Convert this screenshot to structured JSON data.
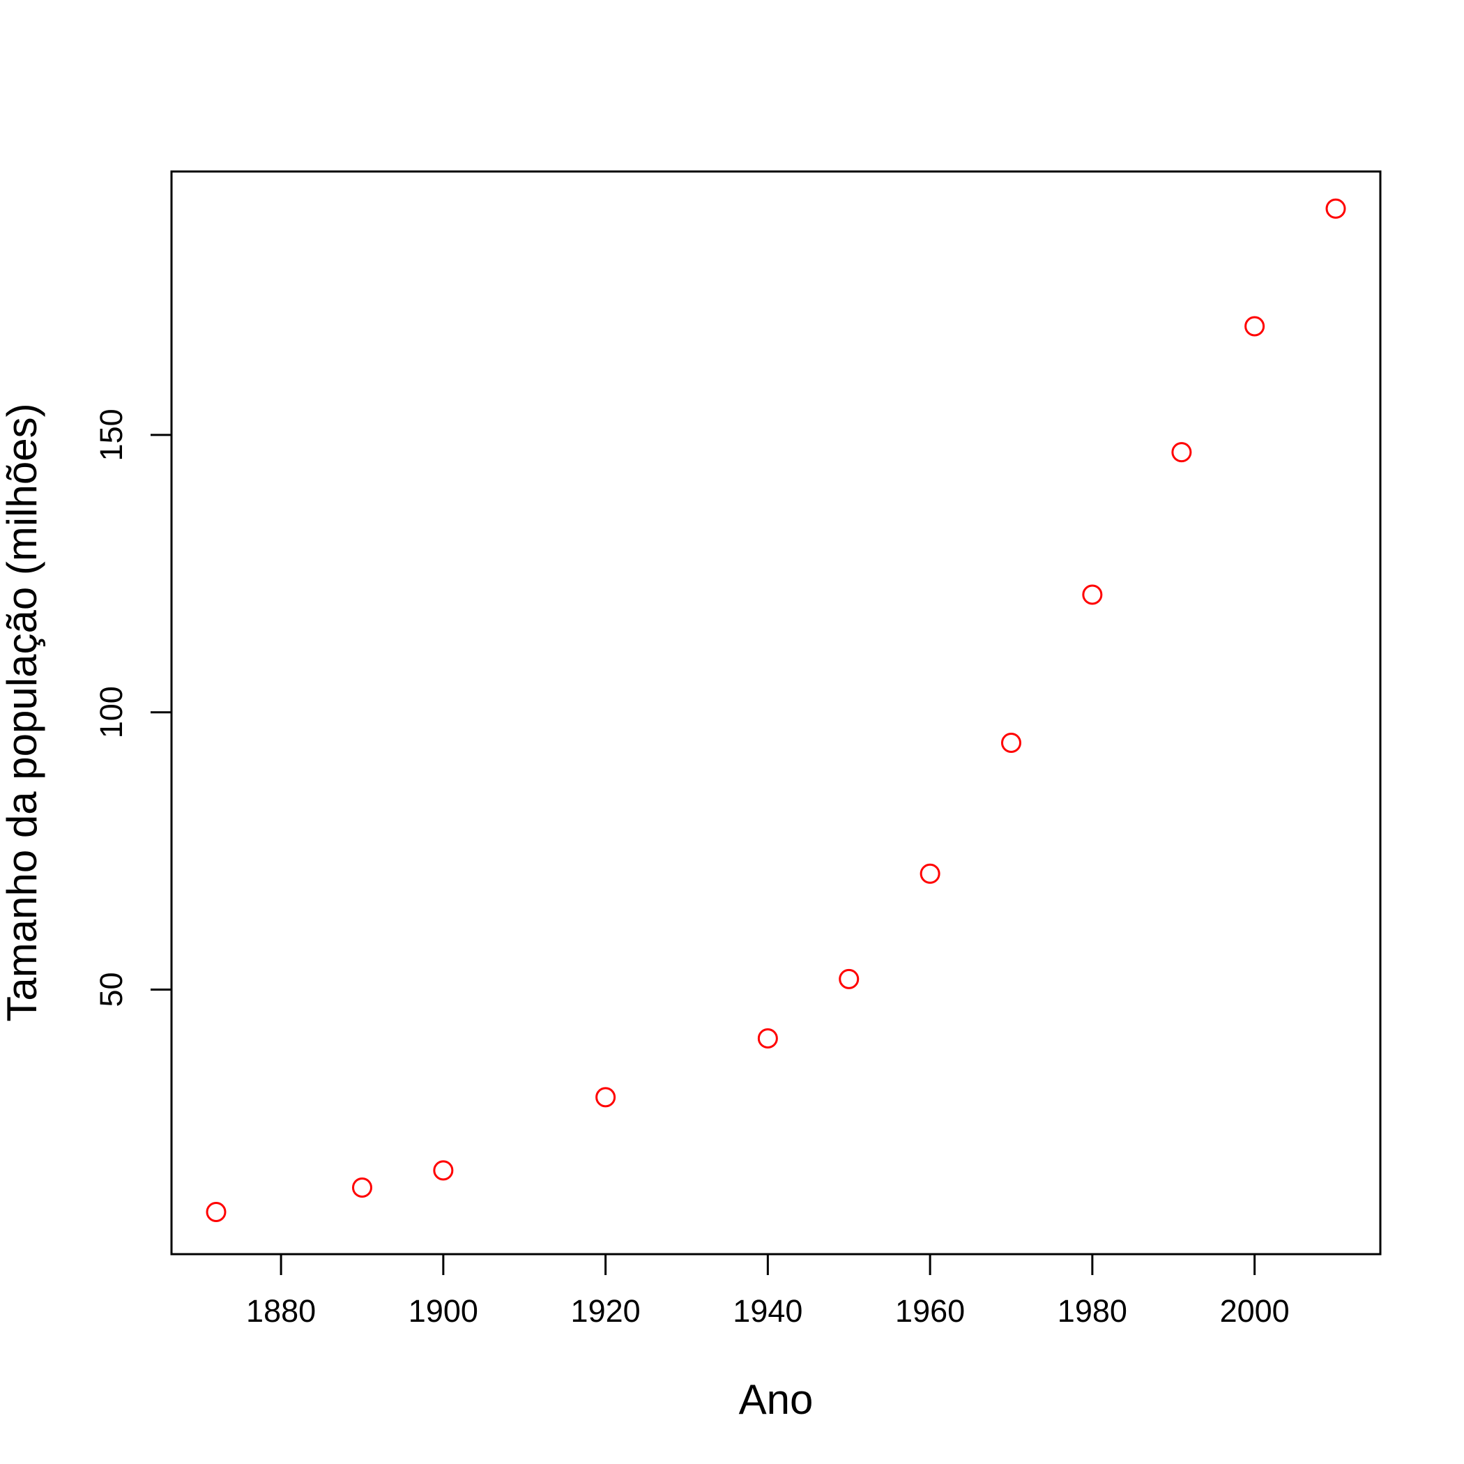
{
  "chart_data": {
    "type": "scatter",
    "title": "",
    "xlabel": "Ano",
    "ylabel": "Tamanho da população (milhões)",
    "xlim": [
      1866.5,
      2015.5
    ],
    "ylim": [
      2.3,
      197.5
    ],
    "xticks": [
      1880,
      1900,
      1920,
      1940,
      1960,
      1980,
      2000
    ],
    "yticks": [
      50,
      100,
      150
    ],
    "grid": false,
    "legend": "none",
    "marker": "open-circle",
    "point_color": "#ff0000",
    "series": [
      {
        "x": [
          1872,
          1890,
          1900,
          1920,
          1940,
          1950,
          1960,
          1970,
          1980,
          1991,
          2000,
          2010
        ],
        "y": [
          9.9,
          14.3,
          17.4,
          30.6,
          41.2,
          51.9,
          70.9,
          94.5,
          121.2,
          146.9,
          169.6,
          190.8
        ]
      }
    ]
  }
}
